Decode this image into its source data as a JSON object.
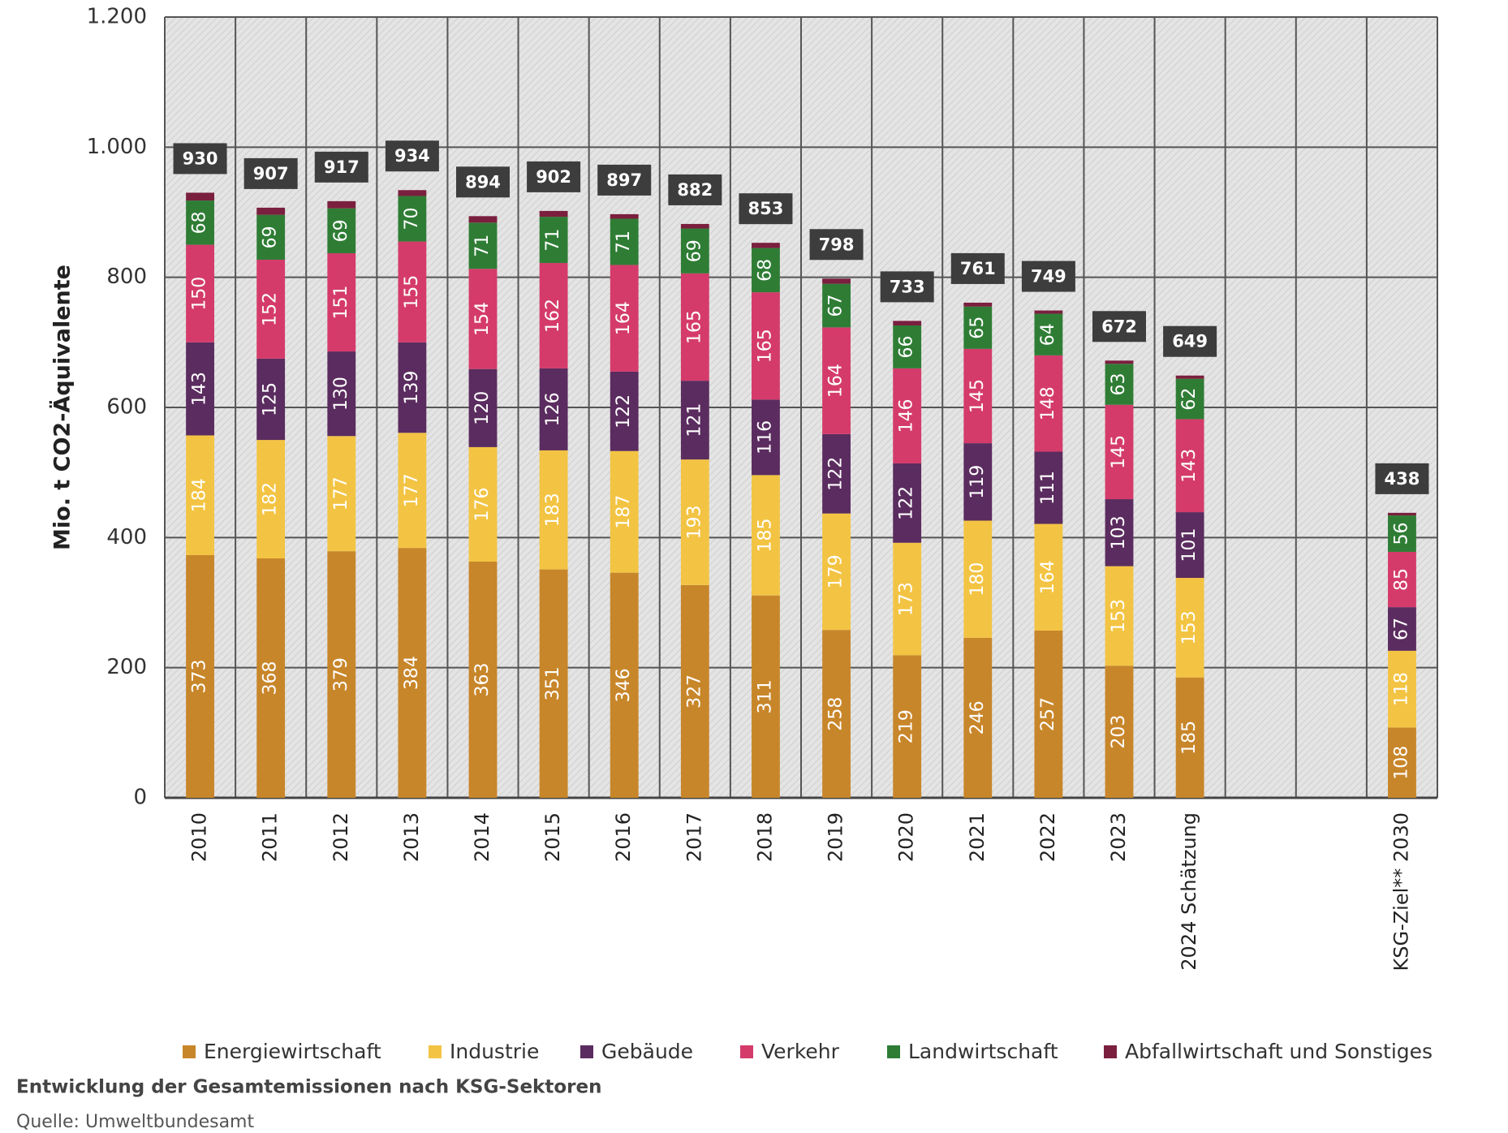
{
  "chart_data": {
    "type": "stacked-bar",
    "y_label": "Mio. t CO2-Äquivalente",
    "caption": "Entwicklung der Gesamtemissionen nach KSG-Sektoren",
    "source": "Quelle: Umweltbundesamt",
    "categories": [
      "2010",
      "2011",
      "2012",
      "2013",
      "2014",
      "2015",
      "2016",
      "2017",
      "2018",
      "2019",
      "2020",
      "2021",
      "2022",
      "2023",
      "2024 Schätzung",
      null,
      null,
      "KSG-Ziel** 2030"
    ],
    "series": [
      {
        "name": "Energiewirtschaft",
        "color": "#c8862a",
        "values": [
          373,
          368,
          379,
          384,
          363,
          351,
          346,
          327,
          311,
          258,
          219,
          246,
          257,
          203,
          185,
          null,
          null,
          108
        ]
      },
      {
        "name": "Industrie",
        "color": "#f3c443",
        "values": [
          184,
          182,
          177,
          177,
          176,
          183,
          187,
          193,
          185,
          179,
          173,
          180,
          164,
          153,
          153,
          null,
          null,
          118
        ]
      },
      {
        "name": "Gebäude",
        "color": "#5b2c5f",
        "values": [
          143,
          125,
          130,
          139,
          120,
          126,
          122,
          121,
          116,
          122,
          122,
          119,
          111,
          103,
          101,
          null,
          null,
          67
        ]
      },
      {
        "name": "Verkehr",
        "color": "#d43b6b",
        "values": [
          150,
          152,
          151,
          155,
          154,
          162,
          164,
          165,
          165,
          164,
          146,
          145,
          148,
          145,
          143,
          null,
          null,
          85
        ]
      },
      {
        "name": "Landwirtschaft",
        "color": "#2f7d35",
        "values": [
          68,
          69,
          69,
          70,
          71,
          71,
          71,
          69,
          68,
          67,
          66,
          65,
          64,
          63,
          62,
          null,
          null,
          56
        ]
      },
      {
        "name": "Abfallwirtschaft und Sonstiges",
        "color": "#7a1f3e",
        "values": [
          12,
          11,
          11,
          9,
          10,
          9,
          7,
          7,
          8,
          8,
          7,
          6,
          5,
          5,
          5,
          null,
          null,
          4
        ]
      }
    ],
    "totals": [
      930,
      907,
      917,
      934,
      894,
      902,
      897,
      882,
      853,
      798,
      733,
      761,
      749,
      672,
      649,
      null,
      null,
      438
    ],
    "ylim": [
      0,
      1200
    ],
    "yticks": [
      0,
      200,
      400,
      600,
      800,
      {
        "value": 1000,
        "label": "1.000"
      },
      {
        "value": 1200,
        "label": "1.200"
      }
    ],
    "grid": true
  }
}
